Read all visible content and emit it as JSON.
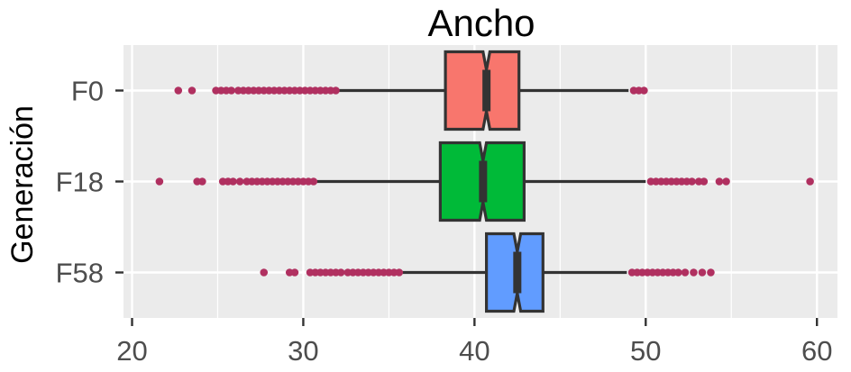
{
  "chart_data": {
    "type": "boxplot",
    "orientation": "horizontal",
    "notched": true,
    "title": "Ancho",
    "xlabel": "",
    "ylabel": "Generación",
    "xlim": [
      19.5,
      61.2
    ],
    "xticks": [
      20,
      30,
      40,
      50,
      60
    ],
    "xtick_labels": [
      "20",
      "30",
      "40",
      "50",
      "60"
    ],
    "grid": true,
    "legend": "none",
    "outlier_color": "#b03060",
    "categories": [
      "F0",
      "F18",
      "F58"
    ],
    "boxes": [
      {
        "category": "F0",
        "color": "#f8766d",
        "whisker_low": 32.0,
        "q1": 38.3,
        "median": 40.7,
        "q3": 42.6,
        "whisker_high": 49.0,
        "notch_low": 40.5,
        "notch_high": 40.9,
        "outliers": [
          22.7,
          23.5,
          24.9,
          25.2,
          25.5,
          25.8,
          26.2,
          26.5,
          26.8,
          27.1,
          27.4,
          27.7,
          28.0,
          28.3,
          28.6,
          28.9,
          29.2,
          29.5,
          29.8,
          30.1,
          30.4,
          30.7,
          31.0,
          31.3,
          31.6,
          31.9,
          49.3,
          49.6,
          49.9
        ]
      },
      {
        "category": "F18",
        "color": "#00ba38",
        "whisker_low": 30.7,
        "q1": 38.0,
        "median": 40.5,
        "q3": 42.9,
        "whisker_high": 50.0,
        "notch_low": 40.3,
        "notch_high": 40.7,
        "outliers": [
          21.6,
          23.8,
          24.1,
          25.3,
          25.6,
          25.9,
          26.3,
          26.7,
          27.0,
          27.3,
          27.6,
          27.9,
          28.2,
          28.5,
          28.8,
          29.1,
          29.4,
          29.7,
          30.0,
          30.3,
          30.6,
          50.3,
          50.6,
          50.9,
          51.2,
          51.5,
          51.8,
          52.1,
          52.4,
          52.7,
          53.1,
          53.4,
          54.3,
          54.7,
          59.6
        ]
      },
      {
        "category": "F58",
        "color": "#619cff",
        "whisker_low": 35.8,
        "q1": 40.7,
        "median": 42.5,
        "q3": 44.0,
        "whisker_high": 48.9,
        "notch_low": 42.3,
        "notch_high": 42.7,
        "outliers": [
          27.7,
          29.2,
          29.5,
          30.4,
          30.7,
          31.0,
          31.3,
          31.6,
          31.9,
          32.2,
          32.6,
          32.9,
          33.2,
          33.5,
          33.8,
          34.1,
          34.4,
          34.7,
          35.0,
          35.3,
          35.6,
          49.2,
          49.5,
          49.8,
          50.1,
          50.4,
          50.7,
          51.0,
          51.3,
          51.6,
          51.9,
          52.3,
          52.8,
          53.3,
          53.8
        ]
      }
    ]
  }
}
